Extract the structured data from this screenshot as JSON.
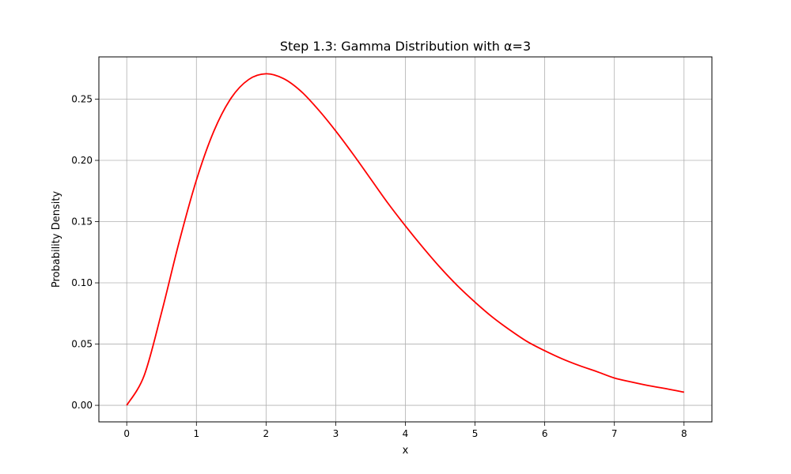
{
  "chart_data": {
    "type": "line",
    "title": "Step 1.3: Gamma Distribution with α=3",
    "xlabel": "x",
    "ylabel": "Probability Density",
    "xlim": [
      -0.4,
      8.4
    ],
    "ylim": [
      -0.0135,
      0.2845
    ],
    "x_ticks": [
      0,
      1,
      2,
      3,
      4,
      5,
      6,
      7,
      8
    ],
    "y_ticks": [
      0.0,
      0.05,
      0.1,
      0.15,
      0.2,
      0.25
    ],
    "x_tick_labels": [
      "0",
      "1",
      "2",
      "3",
      "4",
      "5",
      "6",
      "7",
      "8"
    ],
    "y_tick_labels": [
      "0.00",
      "0.05",
      "0.10",
      "0.15",
      "0.20",
      "0.25"
    ],
    "grid": true,
    "legend": false,
    "series": [
      {
        "color": "#ff0000",
        "x": [
          0,
          0.25,
          0.5,
          0.75,
          1,
          1.25,
          1.5,
          1.75,
          2,
          2.25,
          2.5,
          2.75,
          3,
          3.25,
          3.5,
          3.75,
          4,
          4.25,
          4.5,
          4.75,
          5,
          5.25,
          5.5,
          5.75,
          6,
          6.25,
          6.5,
          6.75,
          7,
          7.25,
          7.5,
          7.75,
          8
        ],
        "values": [
          0,
          0.0243,
          0.0758,
          0.1329,
          0.1839,
          0.2238,
          0.251,
          0.266,
          0.2707,
          0.2668,
          0.2565,
          0.2414,
          0.224,
          0.205,
          0.185,
          0.165,
          0.1465,
          0.129,
          0.1125,
          0.0975,
          0.0842,
          0.072,
          0.0615,
          0.052,
          0.0446,
          0.038,
          0.0324,
          0.0275,
          0.0223,
          0.019,
          0.016,
          0.0135,
          0.0107
        ]
      }
    ]
  }
}
